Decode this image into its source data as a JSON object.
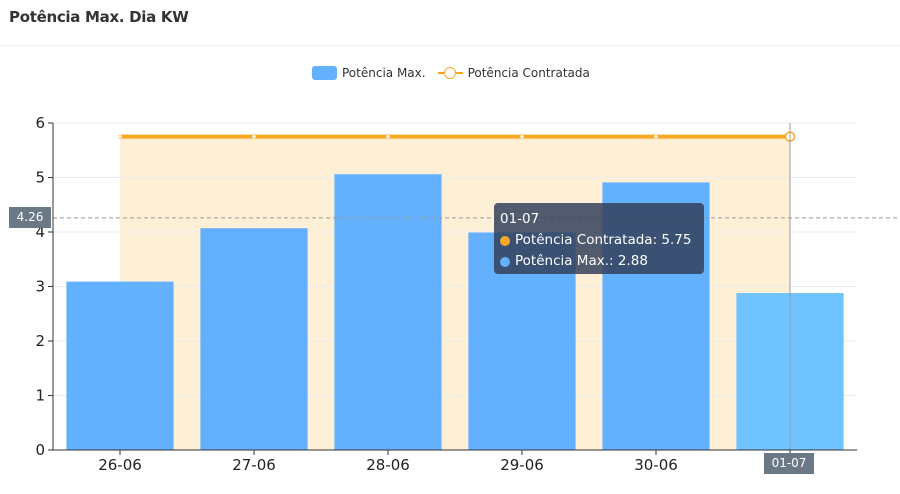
{
  "header": {
    "title": "Potência Max. Dia KW"
  },
  "legend": [
    {
      "label": "Potência Max.",
      "color": "#63b0ff",
      "kind": "bar"
    },
    {
      "label": "Potência Contratada",
      "color": "#f9a825",
      "kind": "line"
    }
  ],
  "crosshair": {
    "y_value_label": "4.26",
    "x_value_label": "01-07"
  },
  "tooltip": {
    "title": "01-07",
    "rows": [
      {
        "label": "Potência Contratada: 5.75",
        "color": "#f9a825"
      },
      {
        "label": "Potência Max.: 2.88",
        "color": "#63b0ff"
      }
    ]
  },
  "chart_data": {
    "type": "bar",
    "categories": [
      "26-06",
      "27-06",
      "28-06",
      "29-06",
      "30-06",
      "01-07"
    ],
    "series": [
      {
        "name": "Potência Max.",
        "type": "bar",
        "values": [
          3.09,
          4.07,
          5.06,
          3.99,
          4.91,
          2.88
        ],
        "color": "#63b0ff"
      },
      {
        "name": "Potência Contratada",
        "type": "line",
        "values": [
          5.75,
          5.75,
          5.75,
          5.75,
          5.75,
          5.75
        ],
        "color": "#f9a825"
      }
    ],
    "yticks": [
      0,
      1,
      2,
      3,
      4,
      5,
      6
    ],
    "ylim": [
      0,
      6
    ],
    "xlabel": "",
    "ylabel": "",
    "grid": true,
    "legend_position": "top-center",
    "highlighted_category": "01-07",
    "highlight_color": "#6fc3ff",
    "band_color": "#fdf0d6"
  }
}
